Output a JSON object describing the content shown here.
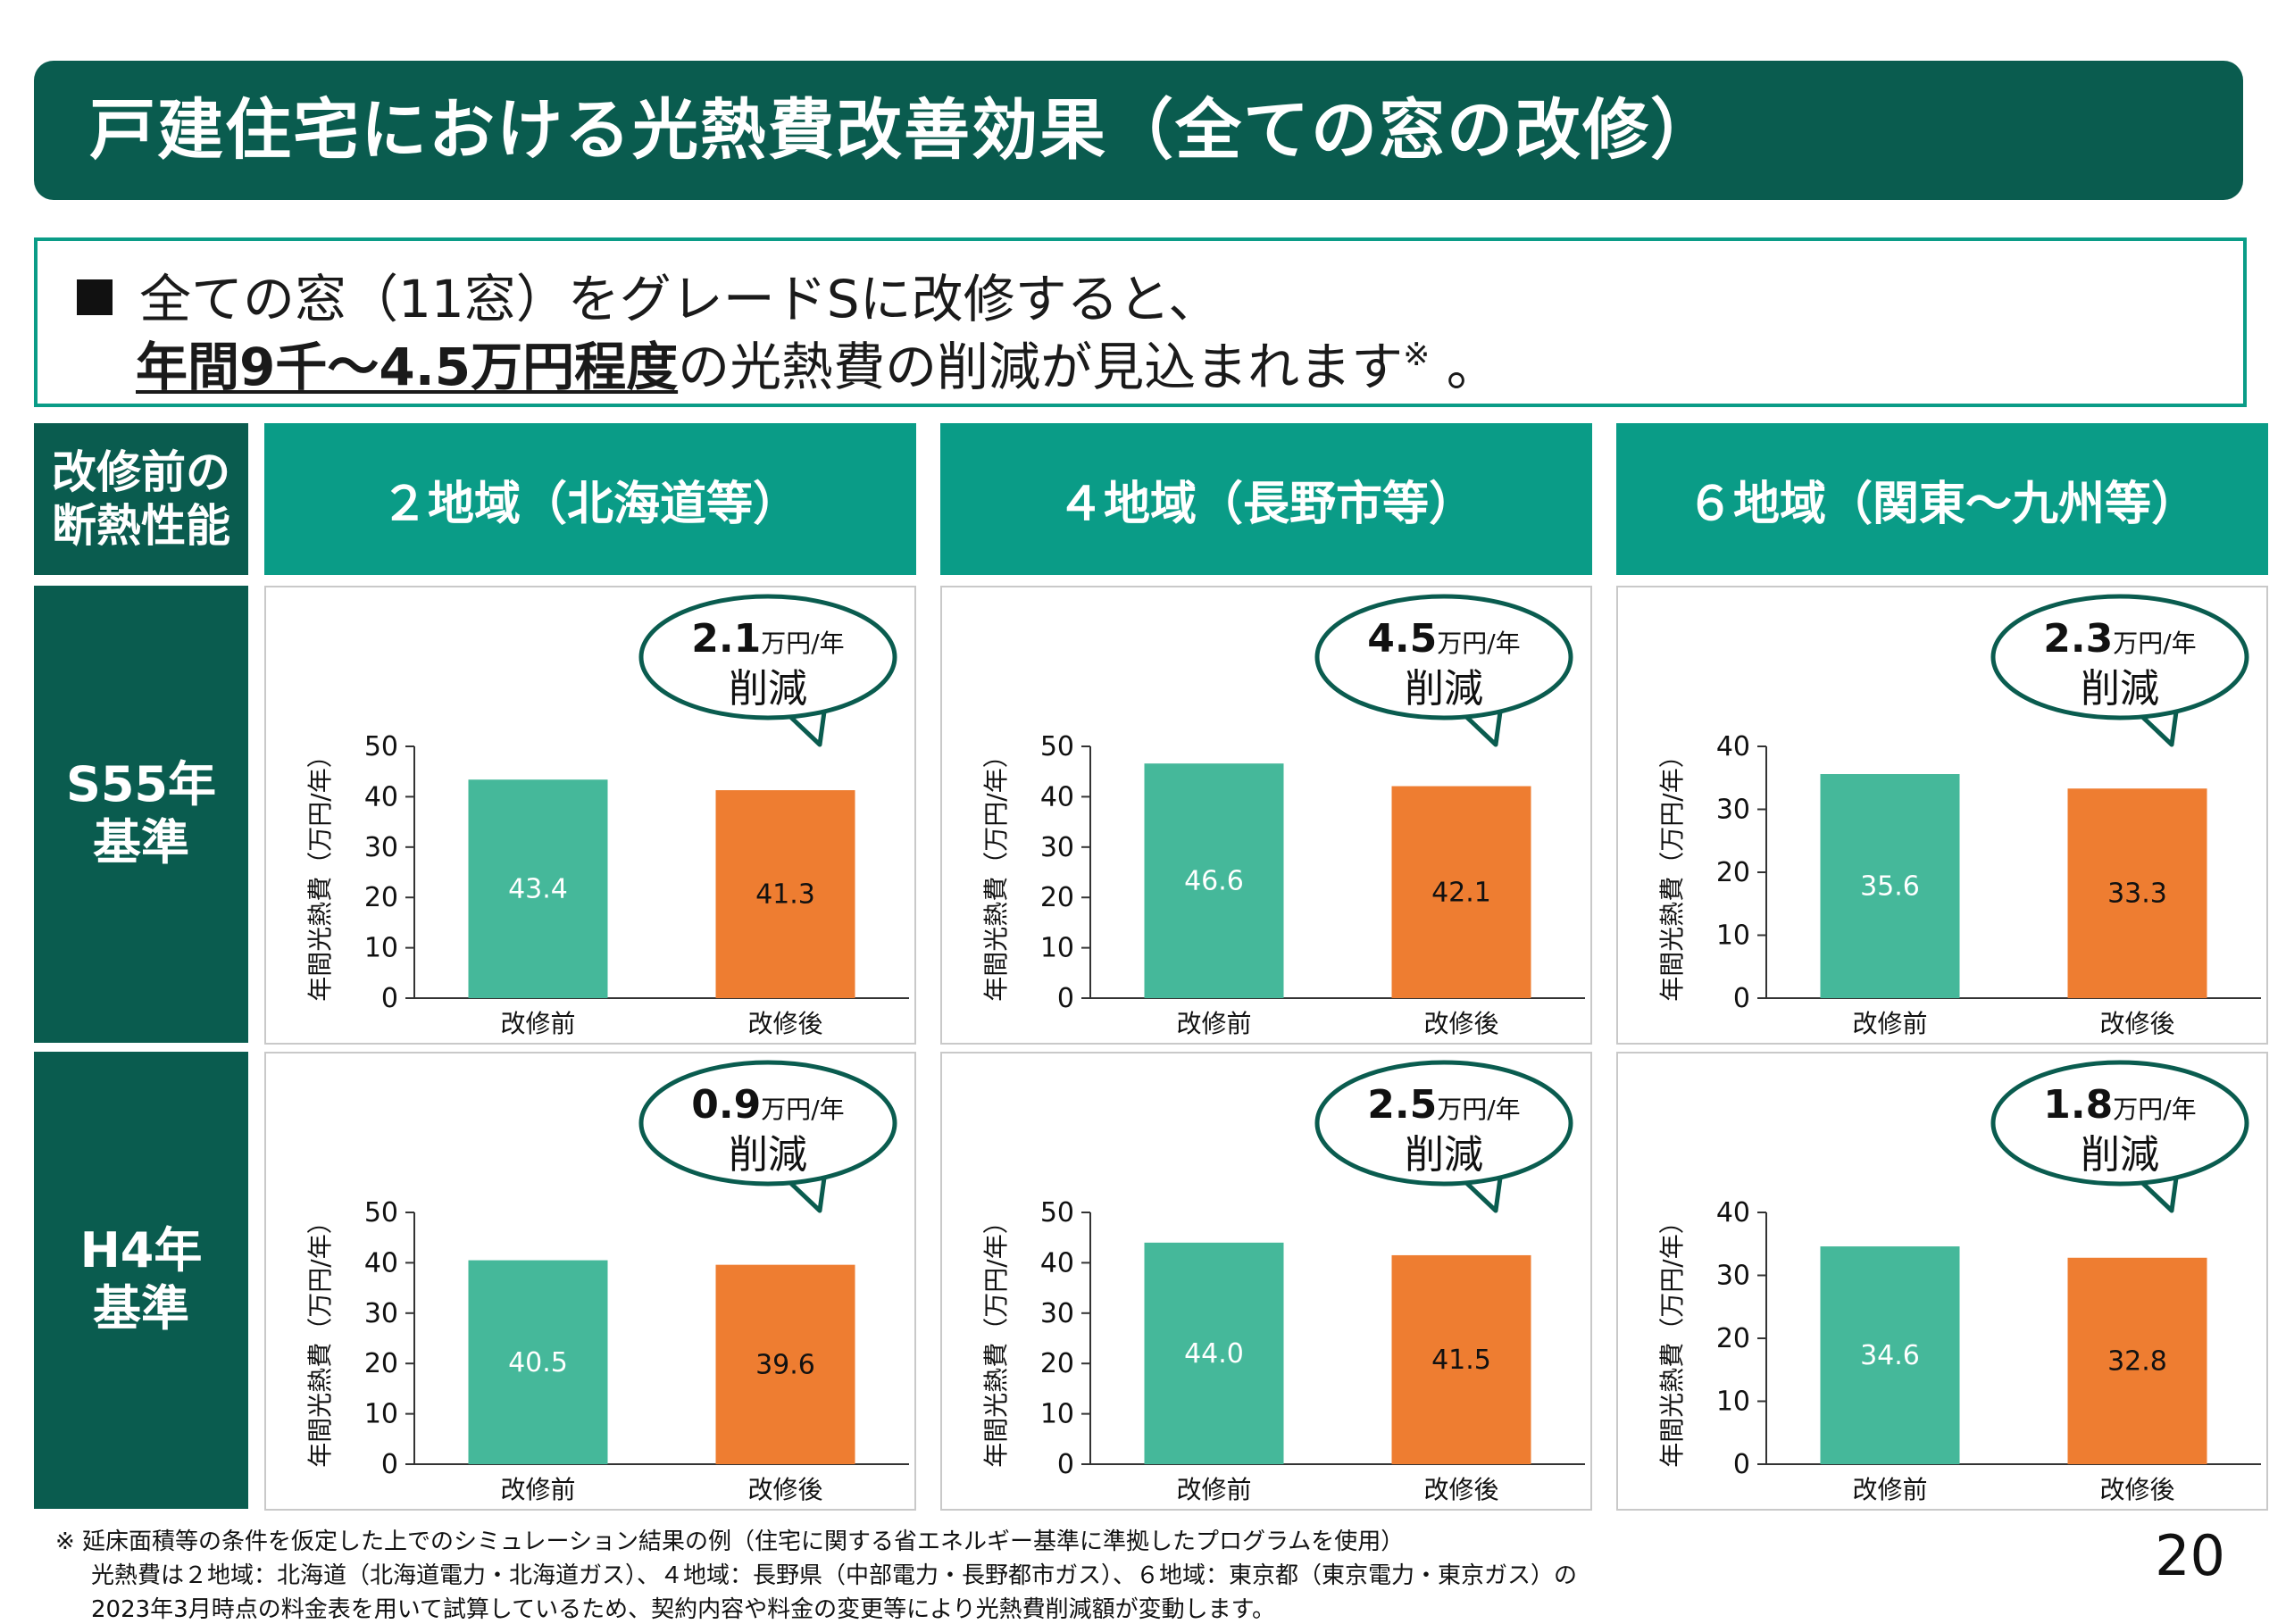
{
  "title": "戸建住宅における光熱費改善効果（全ての窓の改修）",
  "summary": {
    "bullet": "■",
    "line1": "全ての窓（11窓）をグレードSに改修すると、",
    "emphasis": "年間9千～4.5万円程度",
    "line2_rest": "の光熱費の削減が見込まれます",
    "note_mark": "※",
    "line2_end": " 。"
  },
  "corner_header": "改修前の\n断熱性能",
  "columns": [
    "２地域（北海道等）",
    "４地域（長野市等）",
    "６地域（関東～九州等）"
  ],
  "rows": [
    "S55年\n基準",
    "H4年\n基準"
  ],
  "colors": {
    "dark_green": "#0a5c4f",
    "teal": "#0a9c87",
    "before_bar": "#45b89a",
    "after_bar": "#ee7d31"
  },
  "chart_data": [
    {
      "type": "bar",
      "row": "S55年基準",
      "column": "２地域（北海道等）",
      "categories": [
        "改修前",
        "改修後"
      ],
      "values": [
        43.4,
        41.3
      ],
      "ylabel": "年間光熱費（万円/年）",
      "ylim": [
        0,
        50
      ],
      "yticks": [
        0,
        10,
        20,
        30,
        40,
        50
      ],
      "callout_value": "2.1",
      "callout_unit": "万円/年",
      "callout_text": "削減"
    },
    {
      "type": "bar",
      "row": "S55年基準",
      "column": "４地域（長野市等）",
      "categories": [
        "改修前",
        "改修後"
      ],
      "values": [
        46.6,
        42.1
      ],
      "ylabel": "年間光熱費（万円/年）",
      "ylim": [
        0,
        50
      ],
      "yticks": [
        0,
        10,
        20,
        30,
        40,
        50
      ],
      "callout_value": "4.5",
      "callout_unit": "万円/年",
      "callout_text": "削減"
    },
    {
      "type": "bar",
      "row": "S55年基準",
      "column": "６地域（関東～九州等）",
      "categories": [
        "改修前",
        "改修後"
      ],
      "values": [
        35.6,
        33.3
      ],
      "ylabel": "年間光熱費（万円/年）",
      "ylim": [
        0,
        40
      ],
      "yticks": [
        0,
        10,
        20,
        30,
        40
      ],
      "callout_value": "2.3",
      "callout_unit": "万円/年",
      "callout_text": "削減"
    },
    {
      "type": "bar",
      "row": "H4年基準",
      "column": "２地域（北海道等）",
      "categories": [
        "改修前",
        "改修後"
      ],
      "values": [
        40.5,
        39.6
      ],
      "ylabel": "年間光熱費（万円/年）",
      "ylim": [
        0,
        50
      ],
      "yticks": [
        0,
        10,
        20,
        30,
        40,
        50
      ],
      "callout_value": "0.9",
      "callout_unit": "万円/年",
      "callout_text": "削減"
    },
    {
      "type": "bar",
      "row": "H4年基準",
      "column": "４地域（長野市等）",
      "categories": [
        "改修前",
        "改修後"
      ],
      "values": [
        44.0,
        41.5
      ],
      "ylabel": "年間光熱費（万円/年）",
      "ylim": [
        0,
        50
      ],
      "yticks": [
        0,
        10,
        20,
        30,
        40,
        50
      ],
      "callout_value": "2.5",
      "callout_unit": "万円/年",
      "callout_text": "削減"
    },
    {
      "type": "bar",
      "row": "H4年基準",
      "column": "６地域（関東～九州等）",
      "categories": [
        "改修前",
        "改修後"
      ],
      "values": [
        34.6,
        32.8
      ],
      "ylabel": "年間光熱費（万円/年）",
      "ylim": [
        0,
        40
      ],
      "yticks": [
        0,
        10,
        20,
        30,
        40
      ],
      "callout_value": "1.8",
      "callout_unit": "万円/年",
      "callout_text": "削減"
    }
  ],
  "footnotes": [
    "※ 延床面積等の条件を仮定した上でのシミュレーション結果の例（住宅に関する省エネルギー基準に準拠したプログラムを使用）",
    "光熱費は２地域：北海道（北海道電力・北海道ガス）、４地域：長野県（中部電力・長野都市ガス）、６地域：東京都（東京電力・東京ガス）の",
    "2023年3月時点の料金表を用いて試算しているため、契約内容や料金の変更等により光熱費削減額が変動します。"
  ],
  "page_number": "20"
}
